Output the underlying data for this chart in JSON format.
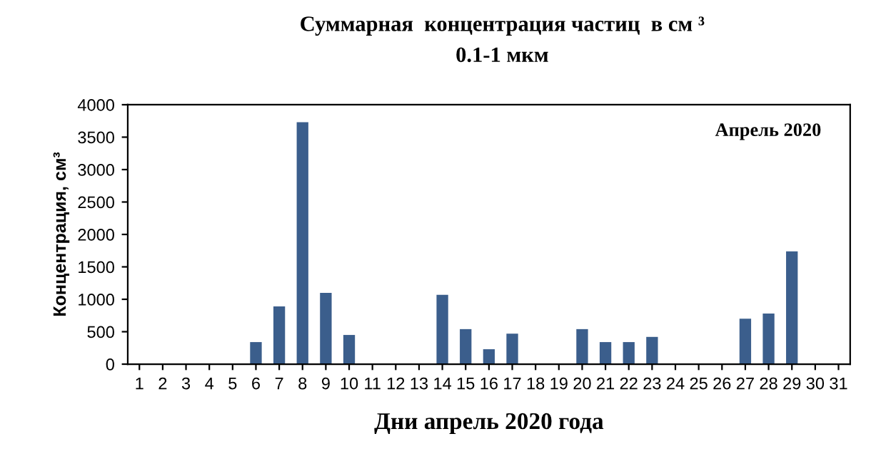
{
  "chart_data": {
    "type": "bar",
    "title": "Суммарная  концентрация частиц  в см ³",
    "subtitle": "0.1-1 мкм",
    "xlabel": "Дни апрель 2020 года",
    "ylabel": "Концентрация, см³",
    "annotations": [
      "Апрель 2020"
    ],
    "categories": [
      "1",
      "2",
      "3",
      "4",
      "5",
      "6",
      "7",
      "8",
      "9",
      "10",
      "11",
      "12",
      "13",
      "14",
      "15",
      "16",
      "17",
      "18",
      "19",
      "20",
      "21",
      "22",
      "23",
      "24",
      "25",
      "26",
      "27",
      "28",
      "29",
      "30",
      "31"
    ],
    "values": [
      null,
      null,
      null,
      null,
      null,
      340,
      890,
      3730,
      1100,
      450,
      null,
      null,
      null,
      1070,
      540,
      230,
      470,
      null,
      null,
      540,
      340,
      340,
      420,
      null,
      null,
      null,
      700,
      780,
      1740,
      null,
      null
    ],
    "color": "#3b5e8c",
    "ylim": [
      0,
      4000
    ],
    "yticks": [
      0,
      500,
      1000,
      1500,
      2000,
      2500,
      3000,
      3500,
      4000
    ],
    "grid": false
  }
}
